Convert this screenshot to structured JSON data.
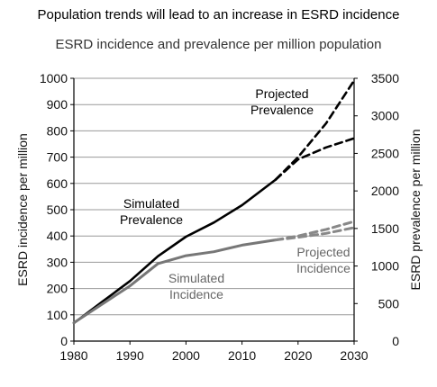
{
  "title": "Population trends will lead to an increase in ESRD incidence",
  "subtitle": "ESRD incidence and prevalence per million population",
  "chart_data": {
    "type": "line",
    "title": "ESRD incidence and prevalence per million population",
    "xlabel": "",
    "ylabel": "ESRD incidence per million",
    "y2label": "ESRD prevalence per million",
    "xlim": [
      1980,
      2030
    ],
    "ylim": [
      0,
      1000
    ],
    "y2lim": [
      0,
      3500
    ],
    "x_ticks": [
      1980,
      1990,
      2000,
      2010,
      2020,
      2030
    ],
    "y_ticks": [
      0,
      100,
      200,
      300,
      400,
      500,
      600,
      700,
      800,
      900,
      1000
    ],
    "y2_ticks": [
      0,
      500,
      1000,
      1500,
      2000,
      2500,
      3000,
      3500
    ],
    "grid": "horizontal",
    "series": [
      {
        "name": "Simulated Prevalence",
        "axis": "right",
        "style": "solid",
        "color": "#000000",
        "x": [
          1980,
          1985,
          1990,
          1995,
          2000,
          2005,
          2010,
          2016
        ],
        "y": [
          240,
          520,
          800,
          1130,
          1390,
          1580,
          1810,
          2150
        ]
      },
      {
        "name": "Projected Prevalence",
        "axis": "right",
        "style": "dashed",
        "color": "#000000",
        "x": [
          2016,
          2020,
          2025,
          2030
        ],
        "y": [
          2150,
          2450,
          2900,
          3470
        ]
      },
      {
        "name": "",
        "axis": "right",
        "style": "dashed",
        "color": "#000000",
        "x": [
          2016,
          2020,
          2025,
          2030
        ],
        "y": [
          2150,
          2420,
          2580,
          2700
        ]
      },
      {
        "name": "Simulated Incidence",
        "axis": "left",
        "style": "solid",
        "color": "#777777",
        "x": [
          1980,
          1985,
          1990,
          1995,
          2000,
          2005,
          2010,
          2016
        ],
        "y": [
          70,
          140,
          210,
          295,
          325,
          340,
          365,
          385
        ]
      },
      {
        "name": "Projected Incidence",
        "axis": "left",
        "style": "dashed",
        "color": "#888888",
        "x": [
          2016,
          2020,
          2025,
          2030
        ],
        "y": [
          385,
          400,
          425,
          455
        ]
      },
      {
        "name": "",
        "axis": "left",
        "style": "dashed",
        "color": "#888888",
        "x": [
          2016,
          2020,
          2025,
          2030
        ],
        "y": [
          385,
          395,
          410,
          432
        ]
      }
    ],
    "annotations": [
      {
        "id": "sim-prev",
        "lines": [
          "Simulated",
          "Prevalence"
        ],
        "color": "#000000"
      },
      {
        "id": "proj-prev",
        "lines": [
          "Projected",
          "Prevalence"
        ],
        "color": "#000000"
      },
      {
        "id": "sim-inc",
        "lines": [
          "Simulated",
          "Incidence"
        ],
        "color": "#666666"
      },
      {
        "id": "proj-inc",
        "lines": [
          "Projected",
          "Incidence"
        ],
        "color": "#666666"
      }
    ]
  }
}
